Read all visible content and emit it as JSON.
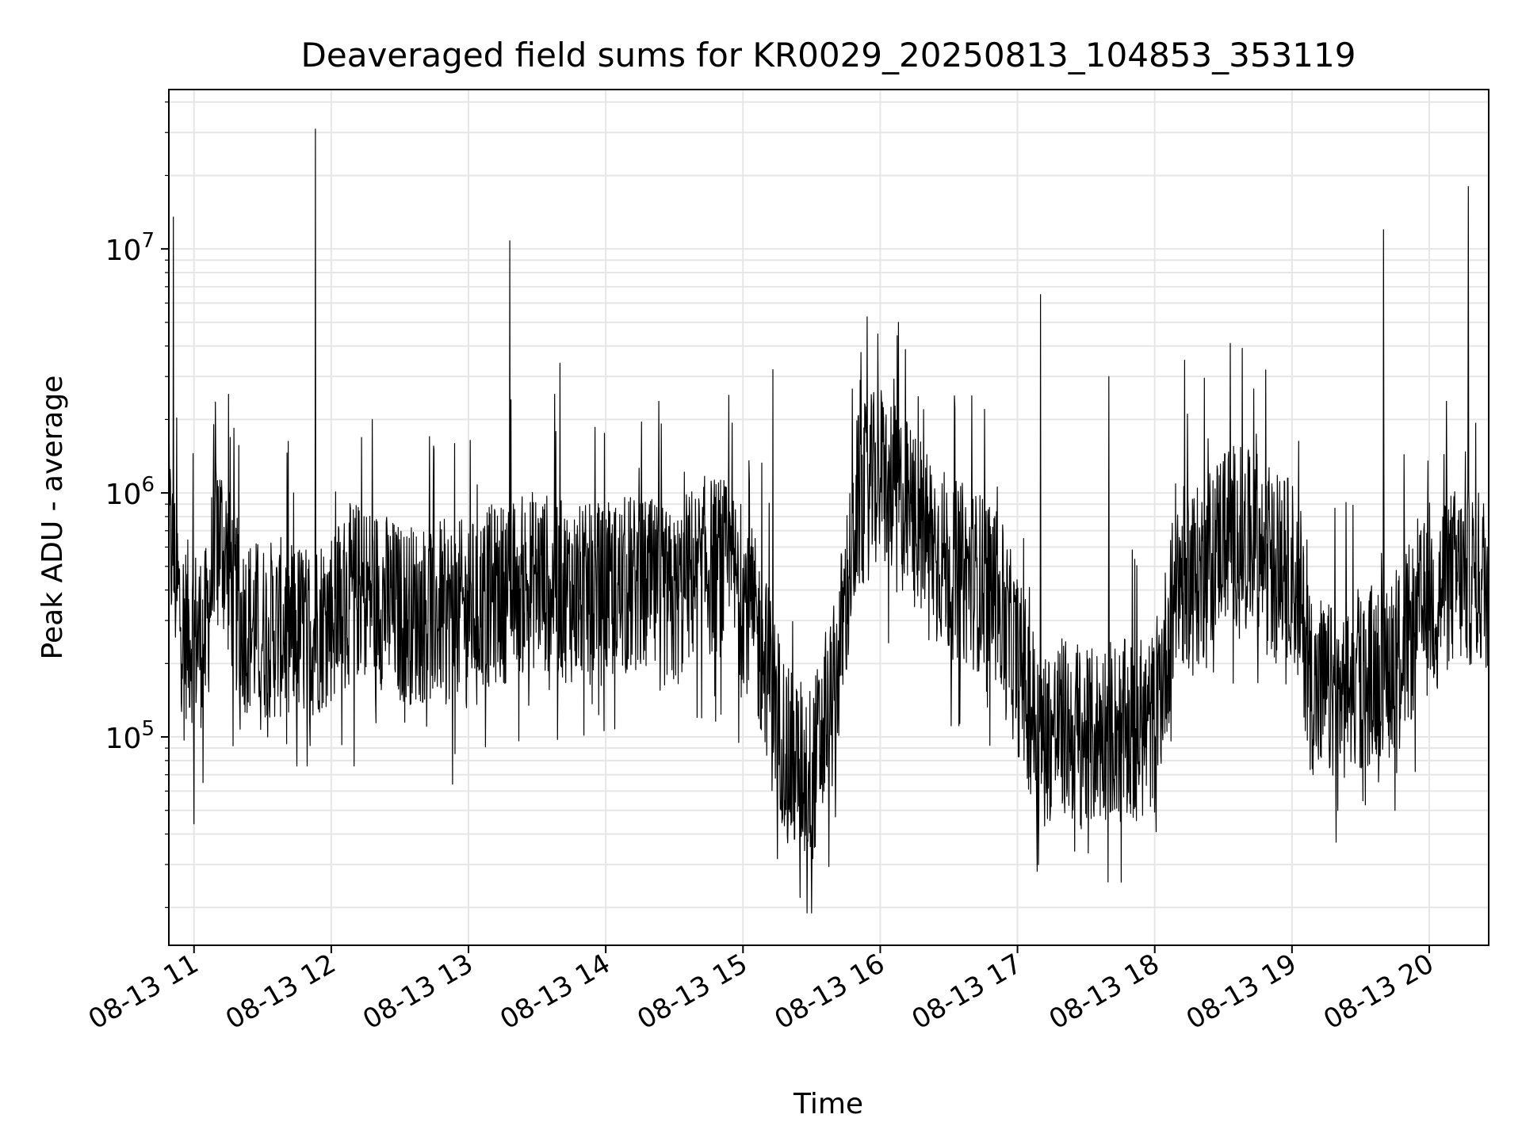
{
  "chart_data": {
    "type": "line",
    "title": "Deaveraged field sums for KR0029_20250813_104853_353119",
    "xlabel": "Time",
    "ylabel": "Peak ADU - average",
    "yscale": "log",
    "ylim": [
      14000,
      45000000
    ],
    "xlim": [
      "2025-08-13 10:49",
      "2025-08-13 20:26"
    ],
    "x_ticks": [
      {
        "label": "08-13 11",
        "value": "2025-08-13 11:00"
      },
      {
        "label": "08-13 12",
        "value": "2025-08-13 12:00"
      },
      {
        "label": "08-13 13",
        "value": "2025-08-13 13:00"
      },
      {
        "label": "08-13 14",
        "value": "2025-08-13 14:00"
      },
      {
        "label": "08-13 15",
        "value": "2025-08-13 15:00"
      },
      {
        "label": "08-13 16",
        "value": "2025-08-13 16:00"
      },
      {
        "label": "08-13 17",
        "value": "2025-08-13 17:00"
      },
      {
        "label": "08-13 18",
        "value": "2025-08-13 18:00"
      },
      {
        "label": "08-13 19",
        "value": "2025-08-13 19:00"
      },
      {
        "label": "08-13 20",
        "value": "2025-08-13 20:00"
      }
    ],
    "y_ticks": [
      {
        "base": "10",
        "exp": "5",
        "value": 100000
      },
      {
        "base": "10",
        "exp": "6",
        "value": 1000000
      },
      {
        "base": "10",
        "exp": "7",
        "value": 10000000
      }
    ],
    "grid": true,
    "line_color": "#000000",
    "grid_color": "#e6e6e6",
    "series": [
      {
        "x": [
          "2025-08-13 10:49",
          "2025-08-13 10:55",
          "2025-08-13 11:05",
          "2025-08-13 11:10",
          "2025-08-13 11:15",
          "2025-08-13 11:20",
          "2025-08-13 11:30",
          "2025-08-13 11:40",
          "2025-08-13 11:50",
          "2025-08-13 12:00",
          "2025-08-13 12:10",
          "2025-08-13 12:20",
          "2025-08-13 12:30",
          "2025-08-13 12:40",
          "2025-08-13 12:50",
          "2025-08-13 13:00",
          "2025-08-13 13:10",
          "2025-08-13 13:20",
          "2025-08-13 13:30",
          "2025-08-13 13:40",
          "2025-08-13 13:50",
          "2025-08-13 14:00",
          "2025-08-13 14:10",
          "2025-08-13 14:20",
          "2025-08-13 14:30",
          "2025-08-13 14:40",
          "2025-08-13 14:50",
          "2025-08-13 15:00",
          "2025-08-13 15:10",
          "2025-08-13 15:20",
          "2025-08-13 15:30",
          "2025-08-13 15:40",
          "2025-08-13 15:50",
          "2025-08-13 16:00",
          "2025-08-13 16:10",
          "2025-08-13 16:20",
          "2025-08-13 16:30",
          "2025-08-13 16:40",
          "2025-08-13 16:50",
          "2025-08-13 17:00",
          "2025-08-13 17:10",
          "2025-08-13 17:20",
          "2025-08-13 17:30",
          "2025-08-13 17:40",
          "2025-08-13 17:50",
          "2025-08-13 18:00",
          "2025-08-13 18:10",
          "2025-08-13 18:20",
          "2025-08-13 18:30",
          "2025-08-13 18:40",
          "2025-08-13 18:50",
          "2025-08-13 19:00",
          "2025-08-13 19:10",
          "2025-08-13 19:20",
          "2025-08-13 19:30",
          "2025-08-13 19:40",
          "2025-08-13 19:50",
          "2025-08-13 20:00",
          "2025-08-13 20:10",
          "2025-08-13 20:20",
          "2025-08-13 20:26"
        ],
        "values": [
          700000,
          280000,
          250000,
          750000,
          500000,
          300000,
          270000,
          280000,
          270000,
          320000,
          400000,
          380000,
          320000,
          320000,
          330000,
          330000,
          380000,
          400000,
          450000,
          400000,
          380000,
          380000,
          420000,
          400000,
          350000,
          500000,
          500000,
          400000,
          200000,
          80000,
          70000,
          150000,
          900000,
          1200000,
          900000,
          700000,
          500000,
          450000,
          400000,
          200000,
          100000,
          110000,
          95000,
          110000,
          105000,
          115000,
          450000,
          450000,
          700000,
          650000,
          500000,
          500000,
          150000,
          150000,
          170000,
          200000,
          250000,
          350000,
          450000,
          450000,
          430000
        ],
        "spikes": [
          {
            "x": "2025-08-13 10:51",
            "value": 13500000
          },
          {
            "x": "2025-08-13 11:53",
            "value": 31000000
          },
          {
            "x": "2025-08-13 12:18",
            "value": 2000000
          },
          {
            "x": "2025-08-13 13:18",
            "value": 10800000
          },
          {
            "x": "2025-08-13 13:40",
            "value": 3400000
          },
          {
            "x": "2025-08-13 15:13",
            "value": 3200000
          },
          {
            "x": "2025-08-13 16:08",
            "value": 5000000
          },
          {
            "x": "2025-08-13 16:40",
            "value": 2500000
          },
          {
            "x": "2025-08-13 17:10",
            "value": 6500000
          },
          {
            "x": "2025-08-13 17:40",
            "value": 3000000
          },
          {
            "x": "2025-08-13 18:13",
            "value": 3500000
          },
          {
            "x": "2025-08-13 18:33",
            "value": 4100000
          },
          {
            "x": "2025-08-13 19:40",
            "value": 12000000
          },
          {
            "x": "2025-08-13 20:17",
            "value": 18000000
          }
        ],
        "dips": [
          {
            "x": "2025-08-13 11:00",
            "value": 44000
          },
          {
            "x": "2025-08-13 11:04",
            "value": 65000
          },
          {
            "x": "2025-08-13 11:45",
            "value": 76000
          },
          {
            "x": "2025-08-13 12:10",
            "value": 76000
          },
          {
            "x": "2025-08-13 12:53",
            "value": 64000
          },
          {
            "x": "2025-08-13 15:28",
            "value": 19000
          },
          {
            "x": "2025-08-13 15:30",
            "value": 19000
          },
          {
            "x": "2025-08-13 15:25",
            "value": 22000
          },
          {
            "x": "2025-08-13 17:25",
            "value": 34000
          },
          {
            "x": "2025-08-13 17:45",
            "value": 45000
          },
          {
            "x": "2025-08-13 19:20",
            "value": 50000
          },
          {
            "x": "2025-08-13 19:45",
            "value": 50000
          }
        ]
      }
    ]
  }
}
